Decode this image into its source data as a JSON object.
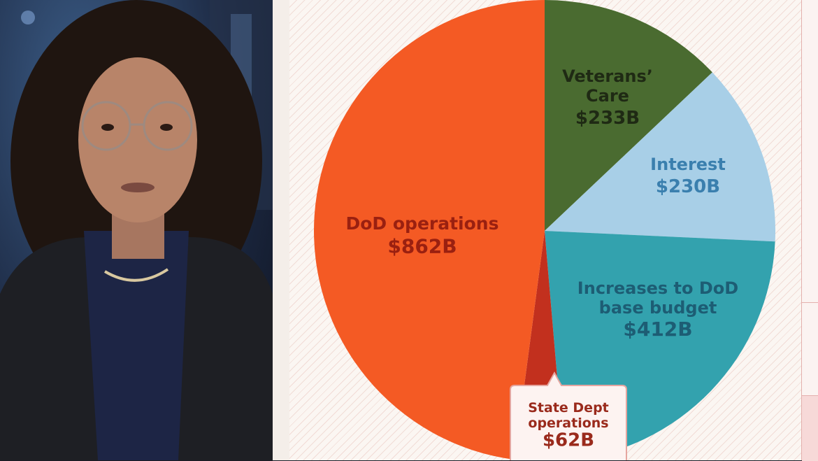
{
  "chart_data": {
    "type": "pie",
    "slices": [
      {
        "label_lines": [
          "Veterans’",
          "Care"
        ],
        "value": 233,
        "value_label": "$233B",
        "color": "#4a6b30",
        "text_color": "#1f2a14"
      },
      {
        "label_lines": [
          "Interest"
        ],
        "value": 230,
        "value_label": "$230B",
        "color": "#a8cfe7",
        "text_color": "#3a7fae"
      },
      {
        "label_lines": [
          "Increases to DoD",
          "base budget"
        ],
        "value": 412,
        "value_label": "$412B",
        "color": "#33a2ae",
        "text_color": "#1d5d74"
      },
      {
        "label_lines": [
          "State Dept",
          "operations"
        ],
        "value": 62,
        "value_label": "$62B",
        "color": "#c2301e",
        "text_color": "#9a2a1c",
        "callout": true
      },
      {
        "label_lines": [
          "DoD operations"
        ],
        "value": 862,
        "value_label": "$862B",
        "color": "#f45a24",
        "text_color": "#9a2010"
      }
    ]
  },
  "colors": {
    "callout_border": "#e5a6a0",
    "callout_fill": "#fdf3f1"
  }
}
